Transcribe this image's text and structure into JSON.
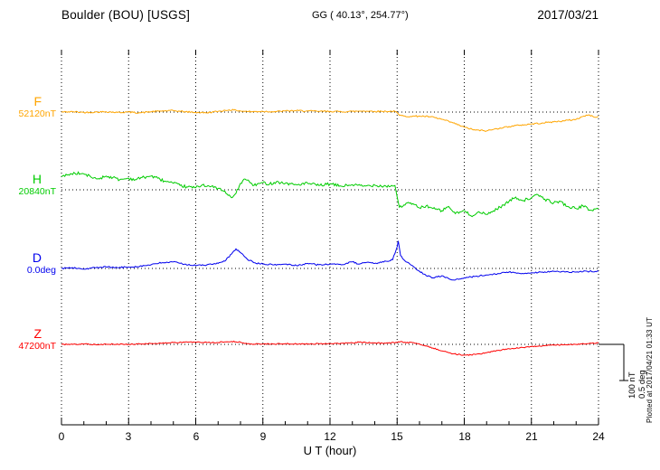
{
  "header": {
    "station": "Boulder (BOU)  [USGS]",
    "coords": "GG ( 40.13°, 254.77°)",
    "date": "2017/03/21"
  },
  "axis": {
    "xlabel": "U T (hour)",
    "ticks": [
      "0",
      "3",
      "6",
      "9",
      "12",
      "15",
      "18",
      "21",
      "24"
    ]
  },
  "scale_bar": {
    "nt_label": "100 nT",
    "deg_label": "0.5 deg"
  },
  "footer_note": "Plotted at 2017/04/21 01:33 UT",
  "chart_data": {
    "type": "line",
    "title": "Boulder (BOU) [USGS] magnetogram 2017/03/21",
    "xlabel": "U T (hour)",
    "xlim": [
      0,
      24
    ],
    "x_tick_step_hours": 3,
    "grid": "dotted vertical at 3h ticks; dotted horizontal baseline per trace",
    "legend_position": "left of each trace",
    "scale": {
      "nt_per_bar": 100,
      "deg_per_bar": 0.5
    },
    "series": [
      {
        "name": "F",
        "baseline_label": "52120nT",
        "units": "nT",
        "color": "#FFA500",
        "noise": 2,
        "points": [
          [
            0,
            0
          ],
          [
            0.5,
            1
          ],
          [
            1,
            -1
          ],
          [
            1.5,
            0
          ],
          [
            2,
            1
          ],
          [
            2.5,
            -1
          ],
          [
            3,
            0
          ],
          [
            3.5,
            -2
          ],
          [
            4,
            1
          ],
          [
            4.5,
            3
          ],
          [
            5,
            4
          ],
          [
            5.5,
            1
          ],
          [
            6,
            -1
          ],
          [
            6.5,
            -2
          ],
          [
            7,
            2
          ],
          [
            7.5,
            6
          ],
          [
            7.8,
            5
          ],
          [
            8,
            3
          ],
          [
            8.5,
            1
          ],
          [
            9,
            2
          ],
          [
            9.5,
            1
          ],
          [
            10,
            3
          ],
          [
            10.5,
            4
          ],
          [
            11,
            3
          ],
          [
            11.5,
            2
          ],
          [
            12,
            2
          ],
          [
            12.5,
            1
          ],
          [
            13,
            2
          ],
          [
            13.5,
            3
          ],
          [
            14,
            2
          ],
          [
            14.5,
            2
          ],
          [
            14.9,
            2
          ],
          [
            15,
            -2
          ],
          [
            15.1,
            -9
          ],
          [
            15.3,
            -11
          ],
          [
            15.6,
            -12
          ],
          [
            16,
            -11
          ],
          [
            16.5,
            -13
          ],
          [
            17,
            -20
          ],
          [
            17.5,
            -30
          ],
          [
            18,
            -42
          ],
          [
            18.5,
            -50
          ],
          [
            19,
            -52
          ],
          [
            19.3,
            -48
          ],
          [
            19.6,
            -44
          ],
          [
            20,
            -40
          ],
          [
            20.5,
            -36
          ],
          [
            21,
            -33
          ],
          [
            21.5,
            -30
          ],
          [
            22,
            -27
          ],
          [
            22.5,
            -24
          ],
          [
            23,
            -20
          ],
          [
            23.3,
            -12
          ],
          [
            23.6,
            -8
          ],
          [
            23.8,
            -14
          ],
          [
            24,
            -12
          ]
        ]
      },
      {
        "name": "H",
        "baseline_label": "20840nT",
        "units": "nT",
        "color": "#00CC00",
        "noise": 4,
        "points": [
          [
            0,
            36
          ],
          [
            0.3,
            42
          ],
          [
            0.6,
            46
          ],
          [
            1,
            44
          ],
          [
            1.3,
            36
          ],
          [
            1.6,
            30
          ],
          [
            2,
            38
          ],
          [
            2.3,
            34
          ],
          [
            2.6,
            28
          ],
          [
            3,
            32
          ],
          [
            3.3,
            28
          ],
          [
            3.6,
            34
          ],
          [
            4,
            38
          ],
          [
            4.3,
            32
          ],
          [
            4.6,
            24
          ],
          [
            5,
            18
          ],
          [
            5.3,
            12
          ],
          [
            5.6,
            8
          ],
          [
            6,
            6
          ],
          [
            6.3,
            14
          ],
          [
            6.6,
            10
          ],
          [
            7,
            4
          ],
          [
            7.2,
            -2
          ],
          [
            7.4,
            -12
          ],
          [
            7.6,
            -22
          ],
          [
            7.8,
            -10
          ],
          [
            8,
            18
          ],
          [
            8.2,
            30
          ],
          [
            8.4,
            22
          ],
          [
            8.6,
            12
          ],
          [
            9,
            20
          ],
          [
            9.3,
            16
          ],
          [
            9.6,
            22
          ],
          [
            10,
            18
          ],
          [
            10.5,
            14
          ],
          [
            11,
            18
          ],
          [
            11.5,
            12
          ],
          [
            12,
            16
          ],
          [
            12.5,
            10
          ],
          [
            13,
            14
          ],
          [
            13.5,
            10
          ],
          [
            14,
            13
          ],
          [
            14.5,
            10
          ],
          [
            14.9,
            12
          ],
          [
            15,
            -20
          ],
          [
            15.1,
            -48
          ],
          [
            15.3,
            -42
          ],
          [
            15.6,
            -36
          ],
          [
            16,
            -50
          ],
          [
            16.3,
            -44
          ],
          [
            16.6,
            -52
          ],
          [
            17,
            -58
          ],
          [
            17.3,
            -46
          ],
          [
            17.6,
            -66
          ],
          [
            18,
            -58
          ],
          [
            18.3,
            -72
          ],
          [
            18.6,
            -62
          ],
          [
            19,
            -68
          ],
          [
            19.3,
            -58
          ],
          [
            19.6,
            -48
          ],
          [
            20,
            -32
          ],
          [
            20.3,
            -20
          ],
          [
            20.6,
            -30
          ],
          [
            21,
            -22
          ],
          [
            21.3,
            -14
          ],
          [
            21.6,
            -26
          ],
          [
            22,
            -36
          ],
          [
            22.3,
            -32
          ],
          [
            22.6,
            -46
          ],
          [
            23,
            -52
          ],
          [
            23.3,
            -44
          ],
          [
            23.6,
            -56
          ],
          [
            24,
            -52
          ]
        ]
      },
      {
        "name": "D",
        "baseline_label": "0.0deg",
        "units": "deg",
        "color": "#0000EE",
        "noise": 0.01,
        "points": [
          [
            0,
            0
          ],
          [
            0.5,
            0.01
          ],
          [
            1,
            -0.01
          ],
          [
            1.5,
            0.01
          ],
          [
            2,
            0.02
          ],
          [
            2.5,
            0.01
          ],
          [
            3,
            0.02
          ],
          [
            3.5,
            0.03
          ],
          [
            4,
            0.05
          ],
          [
            4.5,
            0.08
          ],
          [
            5,
            0.09
          ],
          [
            5.5,
            0.06
          ],
          [
            6,
            0.04
          ],
          [
            6.5,
            0.05
          ],
          [
            7,
            0.07
          ],
          [
            7.3,
            0.1
          ],
          [
            7.6,
            0.2
          ],
          [
            7.8,
            0.27
          ],
          [
            8,
            0.22
          ],
          [
            8.3,
            0.13
          ],
          [
            8.6,
            0.08
          ],
          [
            9,
            0.06
          ],
          [
            9.5,
            0.05
          ],
          [
            10,
            0.06
          ],
          [
            10.5,
            0.04
          ],
          [
            11,
            0.07
          ],
          [
            11.5,
            0.05
          ],
          [
            12,
            0.06
          ],
          [
            12.5,
            0.05
          ],
          [
            13,
            0.09
          ],
          [
            13.3,
            0.06
          ],
          [
            13.6,
            0.08
          ],
          [
            14,
            0.07
          ],
          [
            14.5,
            0.1
          ],
          [
            14.8,
            0.12
          ],
          [
            15,
            0.3
          ],
          [
            15.05,
            0.38
          ],
          [
            15.15,
            0.18
          ],
          [
            15.3,
            0.12
          ],
          [
            15.6,
            0.05
          ],
          [
            16,
            -0.04
          ],
          [
            16.3,
            -0.1
          ],
          [
            16.6,
            -0.13
          ],
          [
            17,
            -0.1
          ],
          [
            17.3,
            -0.14
          ],
          [
            17.6,
            -0.16
          ],
          [
            18,
            -0.13
          ],
          [
            18.5,
            -0.11
          ],
          [
            19,
            -0.09
          ],
          [
            19.5,
            -0.07
          ],
          [
            20,
            -0.05
          ],
          [
            20.5,
            -0.07
          ],
          [
            21,
            -0.06
          ],
          [
            21.5,
            -0.05
          ],
          [
            22,
            -0.04
          ],
          [
            22.5,
            -0.05
          ],
          [
            23,
            -0.05
          ],
          [
            23.5,
            -0.04
          ],
          [
            24,
            -0.04
          ]
        ]
      },
      {
        "name": "Z",
        "baseline_label": "47200nT",
        "units": "nT",
        "color": "#FF0000",
        "noise": 1.5,
        "points": [
          [
            0,
            0
          ],
          [
            0.5,
            0
          ],
          [
            1,
            1
          ],
          [
            1.5,
            0
          ],
          [
            2,
            0
          ],
          [
            2.5,
            1
          ],
          [
            3,
            0
          ],
          [
            3.5,
            1
          ],
          [
            4,
            2
          ],
          [
            4.5,
            3
          ],
          [
            5,
            5
          ],
          [
            5.5,
            6
          ],
          [
            6,
            6
          ],
          [
            6.5,
            5
          ],
          [
            7,
            5
          ],
          [
            7.3,
            7
          ],
          [
            7.6,
            8
          ],
          [
            8,
            6
          ],
          [
            8.2,
            2
          ],
          [
            8.5,
            1
          ],
          [
            9,
            1
          ],
          [
            9.5,
            1
          ],
          [
            10,
            2
          ],
          [
            10.5,
            1
          ],
          [
            11,
            1
          ],
          [
            11.5,
            2
          ],
          [
            12,
            2
          ],
          [
            12.5,
            3
          ],
          [
            13,
            4
          ],
          [
            13.3,
            6
          ],
          [
            13.6,
            5
          ],
          [
            14,
            4
          ],
          [
            14.5,
            3
          ],
          [
            15,
            5
          ],
          [
            15.2,
            8
          ],
          [
            15.4,
            4
          ],
          [
            15.6,
            6
          ],
          [
            16,
            1
          ],
          [
            16.3,
            -4
          ],
          [
            16.6,
            -10
          ],
          [
            17,
            -18
          ],
          [
            17.5,
            -26
          ],
          [
            18,
            -30
          ],
          [
            18.5,
            -28
          ],
          [
            19,
            -23
          ],
          [
            19.5,
            -17
          ],
          [
            20,
            -12
          ],
          [
            20.5,
            -9
          ],
          [
            21,
            -6
          ],
          [
            21.5,
            -4
          ],
          [
            22,
            -2
          ],
          [
            22.5,
            -1
          ],
          [
            23,
            0
          ],
          [
            23.5,
            2
          ],
          [
            24,
            4
          ]
        ]
      }
    ]
  }
}
